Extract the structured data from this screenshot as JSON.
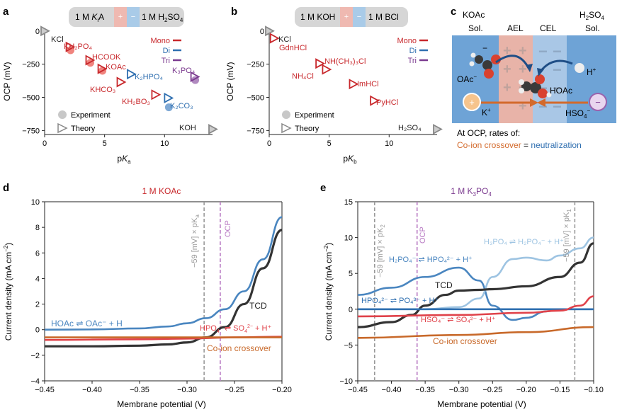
{
  "colors": {
    "mono": "#c8282c",
    "di": "#2f6fb0",
    "tri": "#7b3a8f",
    "exp": "#e86a6a",
    "theory": "#888888",
    "tcd": "#333333",
    "crossover": "#c8692a",
    "red": "#e0424a",
    "blue": "#4a86c0",
    "lightblue": "#9ec4e2",
    "ocp": "#b97cc4",
    "grey": "#9a9a9a"
  },
  "panels": {
    "a": "a",
    "b": "b",
    "c": "c",
    "d": "d",
    "e": "e"
  },
  "a": {
    "header_left_pre": "1 M ",
    "header_left_k": "K",
    "header_left_sub": "i",
    "header_left_post": "A",
    "header_plus": "+",
    "header_minus": "−",
    "header_right_pre": "1 M H",
    "header_right_sub1": "2",
    "header_right_mid": "SO",
    "header_right_sub2": "4",
    "ylabel": "OCP (mV)",
    "xlabel_p": "p",
    "xlabel_k": "K",
    "xlabel_sub": "a",
    "legend_mono": "Mono",
    "legend_di": "Di",
    "legend_tri": "Tri",
    "legend_exp": "Experiment",
    "legend_theory": "Theory"
  },
  "b": {
    "header_left": "1 M KOH",
    "header_right": "1 M BCl",
    "header_plus": "+",
    "header_minus": "−",
    "ylabel": "OCP (mV)",
    "xlabel_p": "p",
    "xlabel_k": "K",
    "xlabel_sub": "b",
    "legend_mono": "Mono",
    "legend_di": "Di",
    "legend_tri": "Tri",
    "legend_exp": "Experiment",
    "legend_theory": "Theory"
  },
  "c": {
    "koac": "KOAc",
    "sol_left": "Sol.",
    "ael": "AEL",
    "cel": "CEL",
    "h2so4_pre": "H",
    "h2so4_sub1": "2",
    "h2so4_mid": "SO",
    "h2so4_sub2": "4",
    "sol_right": "Sol.",
    "oac": "OAc",
    "oac_sup": "−",
    "hoac": "HOAc",
    "h": "H",
    "h_sup": "+",
    "k": "K",
    "k_sup": "+",
    "hso4": "HSO",
    "hso4_sub": "4",
    "hso4_sup": "−",
    "plus": "+",
    "minus": "−",
    "footer_line1": "At OCP, rates of:",
    "footer_crossover": "Co-ion crossover",
    "footer_eq": " = ",
    "footer_neutral": "neutralization"
  },
  "d": {
    "title": "1 M KOAc",
    "ylabel": "Current density (mA cm",
    "ylabel_sup": "−2",
    "ylabel_end": ")",
    "xlabel": "Membrane potential (V)",
    "vline_label": "−59 [mV] × pK",
    "vline_sub": "a",
    "ocp": "OCP",
    "label_hoac": "HOAc ⇌ OAc⁻ + H",
    "label_tcd": "TCD",
    "label_hpo4": "HPO",
    "label_hpo4_sub": "4",
    "label_hpo4_sup": "−",
    "label_hpo4_end": " ⇌ SO",
    "label_so4_sub": "4",
    "label_so4_sup": "2−",
    "label_hpo4_tail": " + H⁺",
    "label_crossover": "Co-ion crossover"
  },
  "e": {
    "title": "1 M K",
    "title_sub": "3",
    "title_end": "PO",
    "title_sub2": "4",
    "ylabel": "Current density (mA cm",
    "ylabel_sup": "−2",
    "ylabel_end": ")",
    "xlabel": "Membrane potential (V)",
    "vline1": "−59 [mV] × pK",
    "vline1_sub": "2",
    "vline2": "−59 [mV] × pK",
    "vline2_sub": "1",
    "ocp": "OCP",
    "label_h3po4": "H₃PO₄ ⇌ H₂PO₄⁻ + H⁺",
    "label_h2po4": "H₂PO₄⁻ ⇌ HPO₄²⁻ + H⁺",
    "label_tcd": "TCD",
    "label_hpo4": "HPO₄²⁻ ⇌ PO₄³⁻ + H⁺",
    "label_hso4": "HSO₄⁻ ⇌ SO₄²⁻ + H⁺",
    "label_crossover": "Co-ion crossover"
  },
  "chart_data": [
    {
      "panel": "a",
      "type": "scatter",
      "xlabel": "pKa",
      "ylabel": "OCP (mV)",
      "xlim": [
        0,
        14
      ],
      "ylim": [
        -780,
        20
      ],
      "xticks": [
        0,
        5,
        10
      ],
      "yticks": [
        0,
        -250,
        -500,
        -750
      ],
      "series": [
        {
          "name": "KCl",
          "group": "theory",
          "x": [
            0
          ],
          "y": [
            0
          ],
          "label": "KCl"
        },
        {
          "name": "KH2PO4",
          "group": "mono",
          "x": [
            2.1
          ],
          "y": [
            -120
          ],
          "exp": [
            -145
          ],
          "label": "KH₂PO₄"
        },
        {
          "name": "HCOOK",
          "group": "mono",
          "x": [
            3.75
          ],
          "y": [
            -220
          ],
          "exp": [
            -240
          ],
          "label": "HCOOK"
        },
        {
          "name": "KOAc",
          "group": "mono",
          "x": [
            4.76
          ],
          "y": [
            -285
          ],
          "exp": [
            -300
          ],
          "label": "KOAc"
        },
        {
          "name": "K2HPO4",
          "group": "di",
          "x": [
            7.2
          ],
          "y": [
            -325
          ],
          "label": "K₂HPO₄"
        },
        {
          "name": "KHCO3",
          "group": "mono",
          "x": [
            6.35
          ],
          "y": [
            -385
          ],
          "label": "KHCO₃"
        },
        {
          "name": "KH2BO3",
          "group": "mono",
          "x": [
            9.24
          ],
          "y": [
            -480
          ],
          "label": "KH₂BO₃"
        },
        {
          "name": "K2CO3",
          "group": "di",
          "x": [
            10.3
          ],
          "y": [
            -505
          ],
          "exp": [
            -575
          ],
          "label": "K₂CO₃"
        },
        {
          "name": "K3PO4",
          "group": "tri",
          "x": [
            12.5
          ],
          "y": [
            -345
          ],
          "exp": [
            -370
          ],
          "label": "K₃PO₄"
        },
        {
          "name": "KOH",
          "group": "theory",
          "x": [
            14
          ],
          "y": [
            -740
          ],
          "label": "KOH"
        }
      ]
    },
    {
      "panel": "b",
      "type": "scatter",
      "xlabel": "pKb",
      "ylabel": "OCP (mV)",
      "xlim": [
        0,
        14
      ],
      "ylim": [
        -780,
        20
      ],
      "xticks": [
        0,
        5,
        10
      ],
      "yticks": [
        0,
        -250,
        -500,
        -750
      ],
      "series": [
        {
          "name": "KCl",
          "group": "theory",
          "x": [
            0
          ],
          "y": [
            0
          ],
          "label": "KCl"
        },
        {
          "name": "GdnHCl",
          "group": "mono",
          "x": [
            0.4
          ],
          "y": [
            -55
          ],
          "label": "GdnHCl"
        },
        {
          "name": "NH(CH3)3Cl",
          "group": "mono",
          "x": [
            4.2
          ],
          "y": [
            -245
          ],
          "label": "NH(CH₃)₃Cl"
        },
        {
          "name": "NH4Cl",
          "group": "mono",
          "x": [
            4.75
          ],
          "y": [
            -290
          ],
          "label": "NH₄Cl"
        },
        {
          "name": "ImHCl",
          "group": "mono",
          "x": [
            7.0
          ],
          "y": [
            -400
          ],
          "label": "ImHCl"
        },
        {
          "name": "PyHCl",
          "group": "mono",
          "x": [
            8.75
          ],
          "y": [
            -525
          ],
          "label": "PyHCl"
        },
        {
          "name": "H2SO4",
          "group": "theory",
          "x": [
            14
          ],
          "y": [
            -740
          ],
          "label": "H₂SO₄"
        }
      ]
    },
    {
      "panel": "d",
      "type": "line",
      "xlabel": "Membrane potential (V)",
      "ylabel": "Current density (mA cm−2)",
      "xlim": [
        -0.45,
        -0.2
      ],
      "ylim": [
        -4,
        10
      ],
      "xticks": [
        -0.45,
        -0.4,
        -0.35,
        -0.3,
        -0.25,
        -0.2
      ],
      "yticks": [
        -4,
        -2,
        0,
        2,
        4,
        6,
        8,
        10
      ],
      "vlines": [
        {
          "name": "-59 mV x pKa",
          "x": -0.282
        },
        {
          "name": "OCP",
          "x": -0.265
        }
      ],
      "series": [
        {
          "name": "HOAc ⇌ OAc⁻ + H",
          "color": "blue",
          "x": [
            -0.45,
            -0.4,
            -0.35,
            -0.32,
            -0.3,
            -0.28,
            -0.26,
            -0.24,
            -0.22,
            -0.2
          ],
          "y": [
            0,
            0.02,
            0.1,
            0.25,
            0.5,
            0.9,
            1.6,
            3.0,
            5.5,
            8.8
          ]
        },
        {
          "name": "TCD",
          "color": "tcd",
          "x": [
            -0.45,
            -0.4,
            -0.35,
            -0.32,
            -0.3,
            -0.28,
            -0.26,
            -0.24,
            -0.22,
            -0.2
          ],
          "y": [
            -1.3,
            -1.3,
            -1.25,
            -1.15,
            -1.0,
            -0.6,
            0.2,
            2.0,
            4.8,
            7.8
          ]
        },
        {
          "name": "HPO₄⁻ ⇌ SO₄²⁻ + H⁺",
          "color": "red",
          "x": [
            -0.45,
            -0.35,
            -0.3,
            -0.25,
            -0.2
          ],
          "y": [
            -0.8,
            -0.75,
            -0.7,
            -0.6,
            -0.55
          ]
        },
        {
          "name": "Co-ion crossover",
          "color": "crossover",
          "x": [
            -0.45,
            -0.35,
            -0.3,
            -0.25,
            -0.2
          ],
          "y": [
            -0.6,
            -0.6,
            -0.6,
            -0.6,
            -0.6
          ]
        }
      ]
    },
    {
      "panel": "e",
      "type": "line",
      "xlabel": "Membrane potential (V)",
      "ylabel": "Current density (mA cm−2)",
      "xlim": [
        -0.45,
        -0.1
      ],
      "ylim": [
        -10,
        15
      ],
      "xticks": [
        -0.45,
        -0.4,
        -0.35,
        -0.3,
        -0.25,
        -0.2,
        -0.15,
        -0.1
      ],
      "yticks": [
        -10,
        -5,
        0,
        5,
        10,
        15
      ],
      "vlines": [
        {
          "name": "-59 mV x pK2",
          "x": -0.425
        },
        {
          "name": "OCP",
          "x": -0.362
        },
        {
          "name": "-59 mV x pK1",
          "x": -0.128
        }
      ],
      "series": [
        {
          "name": "H₂PO₄⁻ ⇌ HPO₄²⁻ + H⁺",
          "color": "blue",
          "x": [
            -0.45,
            -0.4,
            -0.35,
            -0.3,
            -0.27,
            -0.25,
            -0.22,
            -0.2,
            -0.17,
            -0.15,
            -0.1
          ],
          "y": [
            2,
            3,
            4.5,
            5.8,
            4,
            0.5,
            -1.5,
            -1.2,
            -0.3,
            0,
            0
          ]
        },
        {
          "name": "H₃PO₄ ⇌ H₂PO₄⁻ + H⁺",
          "color": "lightblue",
          "x": [
            -0.45,
            -0.35,
            -0.3,
            -0.27,
            -0.25,
            -0.22,
            -0.2,
            -0.17,
            -0.15,
            -0.12,
            -0.1
          ],
          "y": [
            0,
            0,
            0.3,
            1.5,
            4.5,
            7,
            7.2,
            6.8,
            7.5,
            8.5,
            10
          ]
        },
        {
          "name": "TCD",
          "color": "tcd",
          "x": [
            -0.45,
            -0.4,
            -0.37,
            -0.35,
            -0.32,
            -0.3,
            -0.27,
            -0.25,
            -0.2,
            -0.15,
            -0.12,
            -0.1
          ],
          "y": [
            -2.5,
            -1.8,
            -0.8,
            0.5,
            2,
            2.6,
            2.7,
            2.8,
            3.2,
            4.5,
            6.5,
            9.2
          ]
        },
        {
          "name": "HPO₄²⁻ ⇌ PO₄³⁻ + H⁺",
          "color": "di",
          "x": [
            -0.45,
            -0.1
          ],
          "y": [
            0,
            0
          ]
        },
        {
          "name": "HSO₄⁻ ⇌ SO₄²⁻ + H⁺",
          "color": "red",
          "x": [
            -0.45,
            -0.3,
            -0.2,
            -0.15,
            -0.12,
            -0.1
          ],
          "y": [
            -1,
            -0.8,
            -0.5,
            -0.2,
            0.5,
            1.8
          ]
        },
        {
          "name": "Co-ion crossover",
          "color": "crossover",
          "x": [
            -0.45,
            -0.3,
            -0.2,
            -0.1
          ],
          "y": [
            -4,
            -3.6,
            -3.2,
            -2.5
          ]
        }
      ]
    }
  ]
}
